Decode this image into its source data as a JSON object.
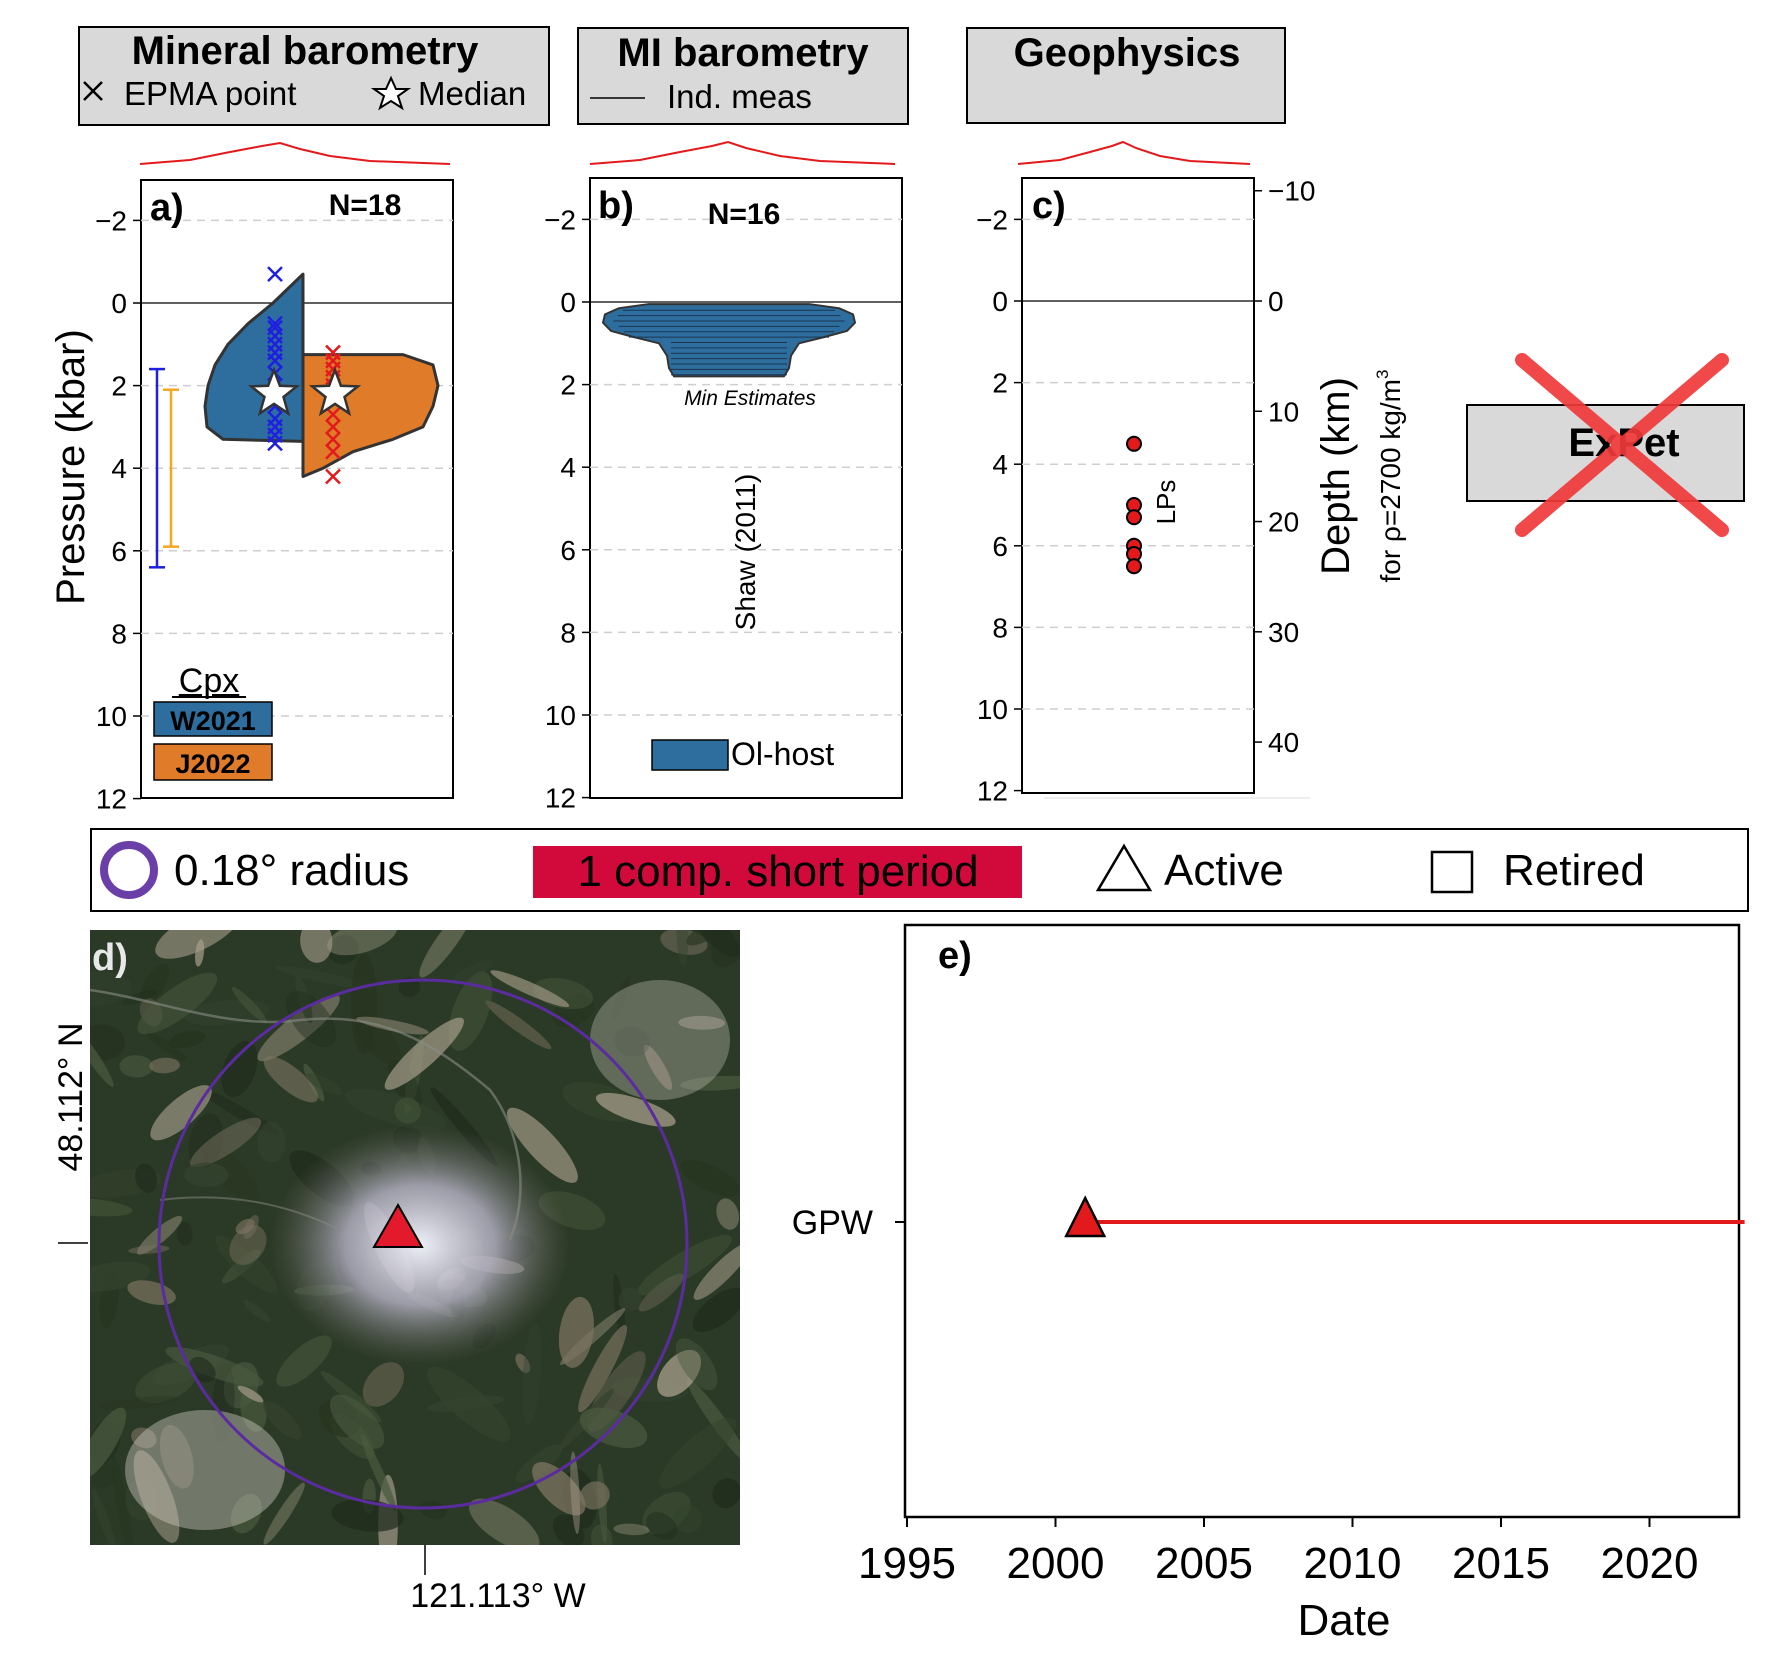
{
  "headers": {
    "mineral": {
      "title": "Mineral barometry",
      "epma": "EPMA point",
      "median": "Median"
    },
    "mi": {
      "title": "MI barometry",
      "ind": "Ind. meas"
    },
    "geo": {
      "title": "Geophysics"
    },
    "expet": {
      "title": "ExPet"
    }
  },
  "colors": {
    "w2021": "#2e6e9e",
    "j2022": "#e07b2a",
    "red": "#e31a1c",
    "purple": "#5a2ca0",
    "legend_band": "#d20a3c",
    "box": "#d9d9d9"
  },
  "chart_data": [
    {
      "panel": "a)",
      "type": "violin",
      "n_label": "N=18",
      "ylabel": "Pressure (kbar)",
      "ylim": [
        12,
        -3
      ],
      "yticks": [
        "−2",
        "0",
        "2",
        "4",
        "6",
        "8",
        "10",
        "12"
      ],
      "legend_title": "Cpx",
      "series": [
        {
          "name": "W2021",
          "color": "#2e6e9e",
          "median": 2.2,
          "points": [
            -0.7,
            0.5,
            0.6,
            0.8,
            1.0,
            1.2,
            1.4,
            1.7,
            2.0,
            2.3,
            2.5,
            2.8,
            3.0,
            3.2,
            3.4
          ],
          "range": [
            1.6,
            6.4
          ]
        },
        {
          "name": "J2022",
          "color": "#e07b2a",
          "median": 2.2,
          "points": [
            1.2,
            1.4,
            1.6,
            1.8,
            2.0,
            2.3,
            2.7,
            3.0,
            3.3,
            3.6,
            4.2
          ],
          "range": [
            2.1,
            5.9
          ]
        }
      ]
    },
    {
      "panel": "b)",
      "type": "violin",
      "n_label": "N=16",
      "ylim": [
        12,
        -3
      ],
      "yticks": [
        "−2",
        "0",
        "2",
        "4",
        "6",
        "8",
        "10",
        "12"
      ],
      "annotation": "Min Estimates",
      "reference": "Shaw (2011)",
      "series": [
        {
          "name": "Ol-host",
          "color": "#2e6e9e",
          "range": [
            0.1,
            1.8
          ]
        }
      ]
    },
    {
      "panel": "c)",
      "type": "scatter",
      "ylim": [
        12,
        -3
      ],
      "yticks": [
        "−2",
        "0",
        "2",
        "4",
        "6",
        "8",
        "10",
        "12"
      ],
      "y2label": "Depth (km)",
      "y2sublabel": "for ρ=2700 kg/m",
      "y2sup": "3",
      "y2ticks": [
        "−10",
        "0",
        "10",
        "20",
        "30",
        "40"
      ],
      "points_label": "LPs",
      "points": [
        3.5,
        5.0,
        5.3,
        6.0,
        6.2,
        6.5
      ]
    },
    {
      "panel": "e)",
      "type": "timeline",
      "xlabel": "Date",
      "xlim": [
        1995,
        2023
      ],
      "xticks": [
        "1995",
        "2000",
        "2005",
        "2010",
        "2015",
        "2020"
      ],
      "stations": [
        {
          "name": "GPW",
          "start": 2001,
          "end": 2023,
          "status": "Active"
        }
      ]
    }
  ],
  "legend": {
    "radius": "0.18° radius",
    "short_period": "1 comp. short period",
    "active": "Active",
    "retired": "Retired"
  },
  "map": {
    "panel": "d)",
    "lat": "48.112° N",
    "lon": "121.113° W"
  }
}
